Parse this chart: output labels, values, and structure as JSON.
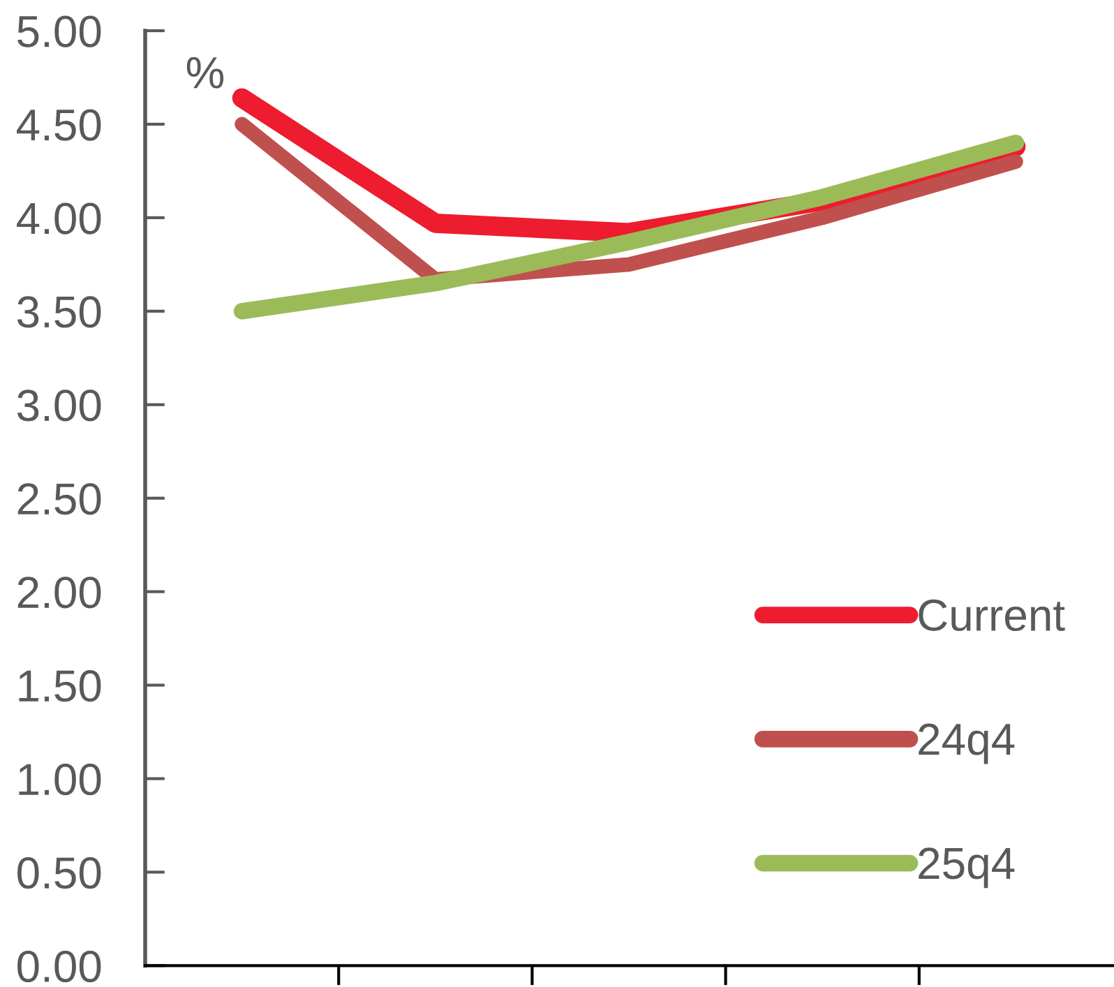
{
  "chart_data": {
    "type": "line",
    "ylabel": "%",
    "categories": [
      null,
      null,
      null,
      null,
      null
    ],
    "series": [
      {
        "name": "Current",
        "color": "#ed1c2e",
        "values": [
          4.64,
          3.97,
          3.92,
          4.09,
          4.38
        ]
      },
      {
        "name": "24q4",
        "color": "#c0504d",
        "values": [
          4.5,
          3.67,
          3.75,
          4.0,
          4.3
        ]
      },
      {
        "name": "25q4",
        "color": "#9bbb59",
        "values": [
          3.5,
          3.65,
          3.87,
          4.11,
          4.4
        ]
      }
    ],
    "ylim": [
      0,
      5
    ],
    "yticks": [
      {
        "value": 0,
        "label": "0.00"
      },
      {
        "value": 0.5,
        "label": "0.50"
      },
      {
        "value": 1,
        "label": "1.00"
      },
      {
        "value": 1.5,
        "label": "1.50"
      },
      {
        "value": 2,
        "label": "2.00"
      },
      {
        "value": 2.5,
        "label": "2.50"
      },
      {
        "value": 3,
        "label": "3.00"
      },
      {
        "value": 3.5,
        "label": "3.50"
      },
      {
        "value": 4,
        "label": "4.00"
      },
      {
        "value": 4.5,
        "label": "4.50"
      },
      {
        "value": 5,
        "label": "5.00"
      }
    ],
    "tick_labels": "y",
    "legend": "bottom right",
    "line_style": "solid"
  }
}
